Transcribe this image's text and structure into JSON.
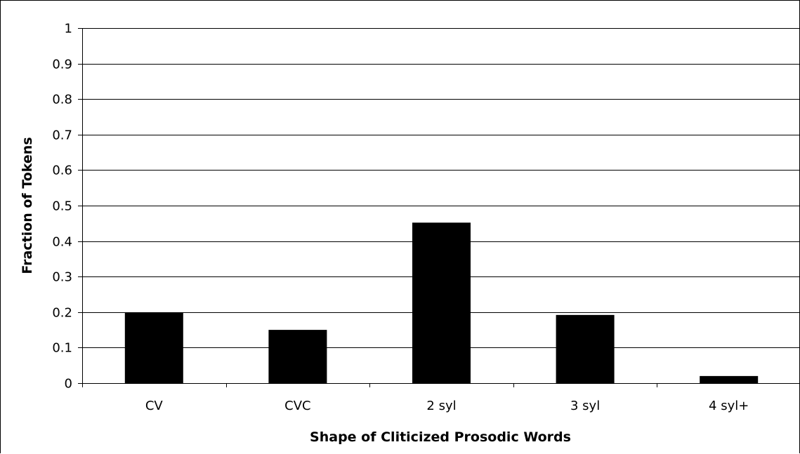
{
  "chart_data": {
    "type": "bar",
    "categories": [
      "CV",
      "CVC",
      "2 syl",
      "3 syl",
      "4 syl+"
    ],
    "values": [
      0.198,
      0.15,
      0.452,
      0.192,
      0.02
    ],
    "xlabel": "Shape of Cliticized Prosodic Words",
    "ylabel": "Fraction of Tokens",
    "ylim": [
      0,
      1
    ],
    "yticks": [
      "0",
      "0.1",
      "0.2",
      "0.3",
      "0.4",
      "0.5",
      "0.6",
      "0.7",
      "0.8",
      "0.9",
      "1"
    ],
    "grid": true,
    "legend": "none",
    "bar_color": "#000000",
    "grid_color": "#000000"
  }
}
